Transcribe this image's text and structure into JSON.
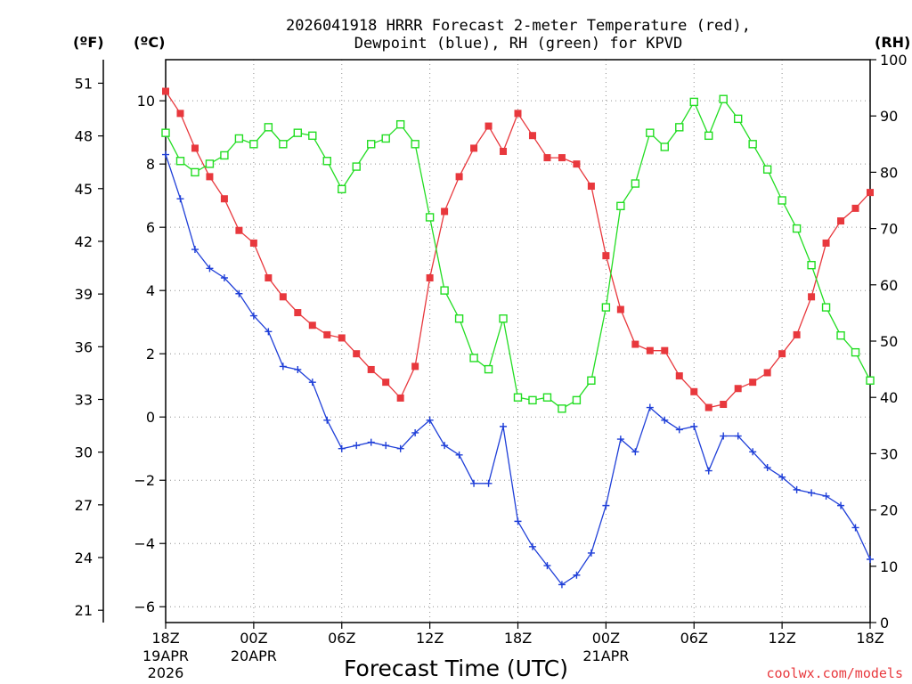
{
  "chart_data": {
    "type": "line",
    "title_line1": "2026041918 HRRR Forecast 2-meter Temperature (red),",
    "title_line2": "Dewpoint (blue), RH (green) for KPVD",
    "unit_f": "(ºF)",
    "unit_c": "(ºC)",
    "unit_rh": "(RH)",
    "xlabel": "Forecast Time (UTC)",
    "credit": "coolwx.com/models",
    "x_range": [
      0,
      48
    ],
    "c_range": [
      -6.5,
      11.3
    ],
    "rh_range": [
      0,
      100
    ],
    "c_ticks": [
      -6,
      -4,
      -2,
      0,
      2,
      4,
      6,
      8,
      10
    ],
    "c_tick_labels": [
      "−6",
      "−4",
      "−2",
      "0",
      "2",
      "4",
      "6",
      "8",
      "10"
    ],
    "f_ticks": [
      21,
      24,
      27,
      30,
      33,
      36,
      39,
      42,
      45,
      48,
      51
    ],
    "f_tick_labels": [
      "21",
      "24",
      "27",
      "30",
      "33",
      "36",
      "39",
      "42",
      "45",
      "48",
      "51"
    ],
    "rh_ticks": [
      0,
      10,
      20,
      30,
      40,
      50,
      60,
      70,
      80,
      90,
      100
    ],
    "rh_tick_labels": [
      "0",
      "10",
      "20",
      "30",
      "40",
      "50",
      "60",
      "70",
      "80",
      "90",
      "100"
    ],
    "x_ticks": [
      {
        "hour": 0,
        "label": "18Z",
        "sub": [
          "19APR",
          "2026"
        ]
      },
      {
        "hour": 6,
        "label": "00Z",
        "sub": [
          "20APR"
        ]
      },
      {
        "hour": 12,
        "label": "06Z",
        "sub": []
      },
      {
        "hour": 18,
        "label": "12Z",
        "sub": []
      },
      {
        "hour": 24,
        "label": "18Z",
        "sub": []
      },
      {
        "hour": 30,
        "label": "00Z",
        "sub": [
          "21APR"
        ]
      },
      {
        "hour": 36,
        "label": "06Z",
        "sub": []
      },
      {
        "hour": 42,
        "label": "12Z",
        "sub": []
      },
      {
        "hour": 48,
        "label": "18Z",
        "sub": []
      }
    ],
    "series": [
      {
        "name": "2-meter Temperature",
        "axis": "c",
        "color": "#e8383d",
        "marker": "filled-square",
        "values": [
          10.3,
          9.6,
          8.5,
          7.6,
          6.9,
          5.9,
          5.5,
          4.4,
          3.8,
          3.3,
          2.9,
          2.6,
          2.5,
          2.0,
          1.5,
          1.1,
          0.6,
          1.6,
          4.4,
          6.5,
          7.6,
          8.5,
          9.2,
          8.4,
          9.6,
          8.9,
          8.2,
          8.2,
          8.0,
          7.3,
          5.1,
          3.4,
          2.3,
          2.1,
          2.1,
          1.3,
          0.8,
          0.3,
          0.4,
          0.9,
          1.1,
          1.4,
          2.0,
          2.6,
          3.8,
          5.5,
          6.2,
          6.6,
          7.1
        ]
      },
      {
        "name": "Dewpoint",
        "axis": "c",
        "color": "#1f3fd8",
        "marker": "plus",
        "values": [
          8.3,
          6.9,
          5.3,
          4.7,
          4.4,
          3.9,
          3.2,
          2.7,
          1.6,
          1.5,
          1.1,
          -0.1,
          -1.0,
          -0.9,
          -0.8,
          -0.9,
          -1.0,
          -0.5,
          -0.1,
          -0.9,
          -1.2,
          -2.1,
          -2.1,
          -0.3,
          -3.3,
          -4.1,
          -4.7,
          -5.3,
          -5.0,
          -4.3,
          -2.8,
          -0.7,
          -1.1,
          0.3,
          -0.1,
          -0.4,
          -0.3,
          -1.7,
          -0.6,
          -0.6,
          -1.1,
          -1.6,
          -1.9,
          -2.3,
          -2.4,
          -2.5,
          -2.8,
          -3.5,
          -4.5
        ]
      },
      {
        "name": "RH",
        "axis": "rh",
        "color": "#22dd22",
        "marker": "open-square",
        "values": [
          87,
          82,
          80,
          81.5,
          83,
          86,
          85,
          88,
          85,
          87,
          86.5,
          82,
          77,
          81,
          85,
          86,
          88.5,
          85,
          72,
          59,
          54,
          47,
          45,
          54,
          40,
          39.5,
          40,
          38,
          39.5,
          43,
          56,
          74,
          78,
          87,
          84.5,
          88,
          92.5,
          86.5,
          93,
          89.5,
          85,
          80.5,
          75,
          70,
          63.5,
          56,
          51,
          48,
          43
        ]
      }
    ]
  }
}
